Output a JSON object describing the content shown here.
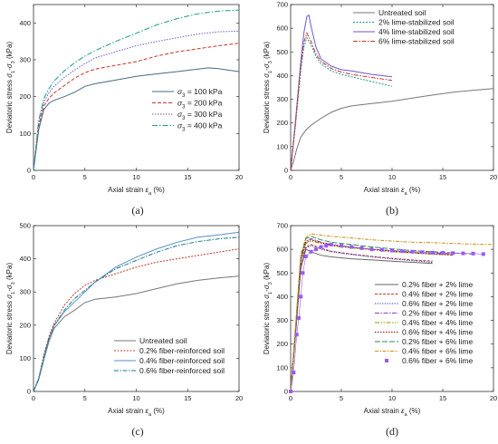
{
  "chart_data": [
    {
      "type": "line",
      "panel_label": "(a)",
      "xlabel": "Axial strain ε_a (%)",
      "ylabel": "Deviatoric stress σ1-σ3 (kPa)",
      "xlim": [
        0,
        20
      ],
      "ylim": [
        0,
        450
      ],
      "xticks": [
        "0",
        "5",
        "10",
        "15",
        "20"
      ],
      "yticks": [
        "0",
        "100",
        "200",
        "300",
        "400"
      ],
      "legend_position": "lower-right",
      "series": [
        {
          "name": "σ3 = 100 kPa",
          "color": "#4a6a82",
          "dash": "solid",
          "x": [
            0,
            0.5,
            1,
            1.5,
            2,
            3,
            4,
            5,
            6,
            8,
            10,
            12,
            14,
            16,
            17,
            18,
            20
          ],
          "y": [
            0,
            110,
            165,
            182,
            190,
            200,
            212,
            228,
            235,
            245,
            255,
            262,
            268,
            275,
            278,
            276,
            268
          ]
        },
        {
          "name": "σ3 = 200 kPa",
          "color": "#c0392b",
          "dash": "4,2",
          "x": [
            0,
            0.5,
            1,
            1.5,
            2,
            3,
            4,
            5,
            6,
            8,
            10,
            12,
            14,
            16,
            18,
            20
          ],
          "y": [
            0,
            120,
            175,
            195,
            210,
            230,
            250,
            265,
            275,
            285,
            295,
            310,
            322,
            330,
            338,
            345
          ]
        },
        {
          "name": "σ3 = 300 kPa",
          "color": "#6a5acd",
          "dash": "1.5,1.5",
          "x": [
            0,
            0.5,
            1,
            1.5,
            2,
            3,
            4,
            5,
            6,
            8,
            10,
            12,
            14,
            16,
            18,
            20
          ],
          "y": [
            0,
            130,
            185,
            210,
            228,
            252,
            272,
            290,
            305,
            322,
            338,
            350,
            360,
            370,
            376,
            378
          ]
        },
        {
          "name": "σ3 = 400 kPa",
          "color": "#1a9c8c",
          "dash": "6,2,1.5,2",
          "x": [
            0,
            0.5,
            1,
            1.5,
            2,
            3,
            4,
            5,
            6,
            8,
            10,
            12,
            14,
            16,
            18,
            20
          ],
          "y": [
            0,
            135,
            195,
            222,
            242,
            270,
            292,
            310,
            325,
            350,
            372,
            395,
            412,
            425,
            432,
            435
          ]
        }
      ]
    },
    {
      "type": "line",
      "panel_label": "(b)",
      "xlabel": "Axial strain ε_a (%)",
      "ylabel": "Deviatoric stress σ1-σ3 (kPa)",
      "xlim": [
        0,
        20
      ],
      "ylim": [
        0,
        700
      ],
      "xticks": [
        "0",
        "5",
        "10",
        "15",
        "20"
      ],
      "yticks": [
        "0",
        "100",
        "200",
        "300",
        "400",
        "500",
        "600",
        "700"
      ],
      "legend_position": "top-right",
      "series": [
        {
          "name": "Untreated soil",
          "color": "#777777",
          "dash": "solid",
          "x": [
            0,
            0.3,
            0.6,
            1,
            1.5,
            2,
            3,
            4,
            5,
            6,
            8,
            10,
            12,
            14,
            16,
            18,
            20
          ],
          "y": [
            0,
            40,
            90,
            140,
            170,
            190,
            220,
            245,
            262,
            272,
            282,
            292,
            305,
            318,
            330,
            338,
            345
          ]
        },
        {
          "name": "2% lime-stabilized soil",
          "color": "#1a9c8c",
          "dash": "2,1.5",
          "x": [
            0,
            0.5,
            1,
            1.3,
            1.6,
            2,
            2.5,
            3,
            4,
            5,
            6,
            8,
            10
          ],
          "y": [
            0,
            200,
            420,
            520,
            560,
            530,
            480,
            450,
            420,
            405,
            395,
            375,
            355
          ]
        },
        {
          "name": "4% lime-stabilized soil",
          "color": "#6a5acd",
          "dash": "solid",
          "x": [
            0,
            0.5,
            1,
            1.3,
            1.6,
            1.8,
            2,
            2.5,
            3,
            4,
            5,
            6,
            8,
            10
          ],
          "y": [
            0,
            220,
            460,
            580,
            650,
            655,
            610,
            520,
            470,
            440,
            425,
            420,
            405,
            395
          ]
        },
        {
          "name": "6% lime-stabilized soil",
          "color": "#c0392b",
          "dash": "5,1.5,1.5,1.5",
          "x": [
            0,
            0.5,
            1,
            1.3,
            1.6,
            2,
            2.5,
            3,
            4,
            5,
            6,
            8,
            10
          ],
          "y": [
            0,
            210,
            440,
            540,
            580,
            545,
            490,
            460,
            430,
            415,
            405,
            392,
            380
          ]
        }
      ]
    },
    {
      "type": "line",
      "panel_label": "(c)",
      "xlabel": "Axial strain ε_a (%)",
      "ylabel": "Deviatoric stress σ1-σ3 (kPa)",
      "xlim": [
        0,
        20
      ],
      "ylim": [
        0,
        500
      ],
      "xticks": [
        "0",
        "5",
        "10",
        "15",
        "20"
      ],
      "yticks": [
        "0",
        "100",
        "200",
        "300",
        "400",
        "500"
      ],
      "legend_position": "lower-right",
      "series": [
        {
          "name": "Untreated soil",
          "color": "#777777",
          "dash": "solid",
          "x": [
            0,
            0.5,
            1,
            1.5,
            2,
            3,
            4,
            5,
            6,
            8,
            10,
            12,
            14,
            16,
            18,
            20
          ],
          "y": [
            0,
            35,
            95,
            150,
            190,
            225,
            245,
            268,
            278,
            285,
            295,
            310,
            325,
            335,
            342,
            348
          ]
        },
        {
          "name": "0.2% fiber-reinforced soil",
          "color": "#c0392b",
          "dash": "2,1.5",
          "x": [
            0,
            0.5,
            1,
            1.5,
            2,
            3,
            4,
            5,
            6,
            8,
            10,
            12,
            14,
            16,
            18,
            20
          ],
          "y": [
            0,
            40,
            110,
            165,
            205,
            260,
            295,
            320,
            335,
            355,
            375,
            390,
            400,
            410,
            420,
            430
          ]
        },
        {
          "name": "0.4% fiber-reinforced soil",
          "color": "#5b8ec9",
          "dash": "solid",
          "x": [
            0,
            0.5,
            1,
            1.5,
            2,
            3,
            4,
            5,
            6,
            8,
            10,
            12,
            14,
            16,
            18,
            20
          ],
          "y": [
            0,
            38,
            100,
            158,
            198,
            240,
            270,
            300,
            330,
            375,
            405,
            430,
            450,
            465,
            472,
            480
          ]
        },
        {
          "name": "0.6% fiber-reinforced soil",
          "color": "#1a7c8c",
          "dash": "5,1.5,1.5,1.5",
          "x": [
            0,
            0.5,
            1,
            1.5,
            2,
            3,
            4,
            5,
            6,
            8,
            10,
            12,
            14,
            16,
            18,
            20
          ],
          "y": [
            0,
            38,
            105,
            160,
            198,
            245,
            280,
            305,
            330,
            370,
            395,
            420,
            440,
            452,
            460,
            465
          ]
        }
      ]
    },
    {
      "type": "line",
      "panel_label": "(d)",
      "xlabel": "Axial strain ε_a (%)",
      "ylabel": "Deviatoric stress σ1-σ3 (kPa)",
      "xlim": [
        0,
        20
      ],
      "ylim": [
        0,
        700
      ],
      "xticks": [
        "0",
        "5",
        "10",
        "15",
        "20"
      ],
      "yticks": [
        "0",
        "100",
        "200",
        "300",
        "400",
        "500",
        "600",
        "700"
      ],
      "legend_position": "right",
      "series": [
        {
          "name": "0.2% fiber + 2% lime",
          "color": "#666666",
          "dash": "solid",
          "x": [
            0,
            0.5,
            1,
            1.5,
            2,
            3,
            4,
            6,
            8,
            10,
            12,
            14
          ],
          "y": [
            0,
            250,
            520,
            600,
            590,
            575,
            568,
            560,
            555,
            550,
            545,
            540
          ]
        },
        {
          "name": "0.4% fiber + 2% lime",
          "color": "#c0392b",
          "dash": "3,1.5",
          "x": [
            0,
            0.5,
            1,
            1.5,
            2,
            3,
            4,
            6,
            8,
            10,
            12,
            14
          ],
          "y": [
            0,
            260,
            530,
            610,
            620,
            605,
            592,
            580,
            570,
            562,
            555,
            550
          ]
        },
        {
          "name": "0.6% fiber + 2% lime",
          "color": "#2c2ccf",
          "dash": "1.2,1.5",
          "x": [
            0,
            0.5,
            1,
            1.5,
            2,
            3,
            4,
            6,
            8,
            10,
            12,
            14
          ],
          "y": [
            0,
            255,
            525,
            605,
            615,
            600,
            590,
            578,
            568,
            560,
            552,
            545
          ]
        },
        {
          "name": "0.2% fiber + 4% lime",
          "color": "#8e44ad",
          "dash": "5,1.5,1.5,1.5",
          "x": [
            0,
            0.5,
            1,
            1.5,
            2,
            3,
            4,
            6,
            8,
            10,
            12,
            14,
            16
          ],
          "y": [
            0,
            270,
            560,
            635,
            645,
            630,
            620,
            610,
            600,
            595,
            590,
            585,
            580
          ]
        },
        {
          "name": "0.4% fiber + 4% lime",
          "color": "#9a9a00",
          "dash": "5,1.5,1.5,1.5,1.5,1.5",
          "x": [
            0,
            0.5,
            1,
            1.5,
            2,
            3,
            4,
            6,
            8,
            10,
            12,
            14,
            16
          ],
          "y": [
            0,
            265,
            550,
            625,
            635,
            625,
            615,
            605,
            598,
            590,
            585,
            580,
            575
          ]
        },
        {
          "name": "0.6% fiber + 4% lime",
          "color": "#8b0000",
          "dash": "1.5,1.5",
          "x": [
            0,
            0.5,
            1,
            1.5,
            2,
            3,
            4,
            6,
            8,
            10,
            12,
            14,
            16
          ],
          "y": [
            0,
            268,
            555,
            630,
            640,
            628,
            618,
            608,
            600,
            592,
            586,
            580,
            576
          ]
        },
        {
          "name": "0.2% fiber + 6% lime",
          "color": "#2e8b57",
          "dash": "6,2",
          "x": [
            0,
            0.5,
            1,
            1.5,
            2,
            3,
            4,
            6,
            8,
            10,
            12,
            14,
            16,
            18
          ],
          "y": [
            0,
            280,
            570,
            645,
            655,
            640,
            630,
            620,
            610,
            602,
            595,
            590,
            585,
            580
          ]
        },
        {
          "name": "0.4% fiber + 6% lime",
          "color": "#d68910",
          "dash": "4,1.5,1.5,1.5",
          "x": [
            0,
            0.5,
            1,
            1.5,
            2,
            3,
            4,
            6,
            8,
            10,
            12,
            14,
            16,
            18,
            20
          ],
          "y": [
            0,
            285,
            580,
            650,
            665,
            660,
            655,
            648,
            640,
            635,
            630,
            628,
            625,
            622,
            620
          ]
        },
        {
          "name": "0.6% fiber + 6% lime",
          "color": "#9b59f6",
          "dash": "none",
          "marker": "square",
          "x": [
            0,
            0.3,
            0.6,
            0.8,
            1,
            1.2,
            1.5,
            2,
            2.5,
            3,
            3.5,
            4,
            5,
            6,
            7,
            8,
            9,
            10,
            11,
            12,
            13,
            14,
            15,
            16,
            17,
            18,
            19
          ],
          "y": [
            0,
            80,
            240,
            310,
            400,
            500,
            570,
            590,
            600,
            610,
            615,
            620,
            615,
            610,
            605,
            600,
            598,
            595,
            592,
            590,
            588,
            586,
            585,
            584,
            583,
            582,
            580
          ]
        }
      ]
    }
  ]
}
